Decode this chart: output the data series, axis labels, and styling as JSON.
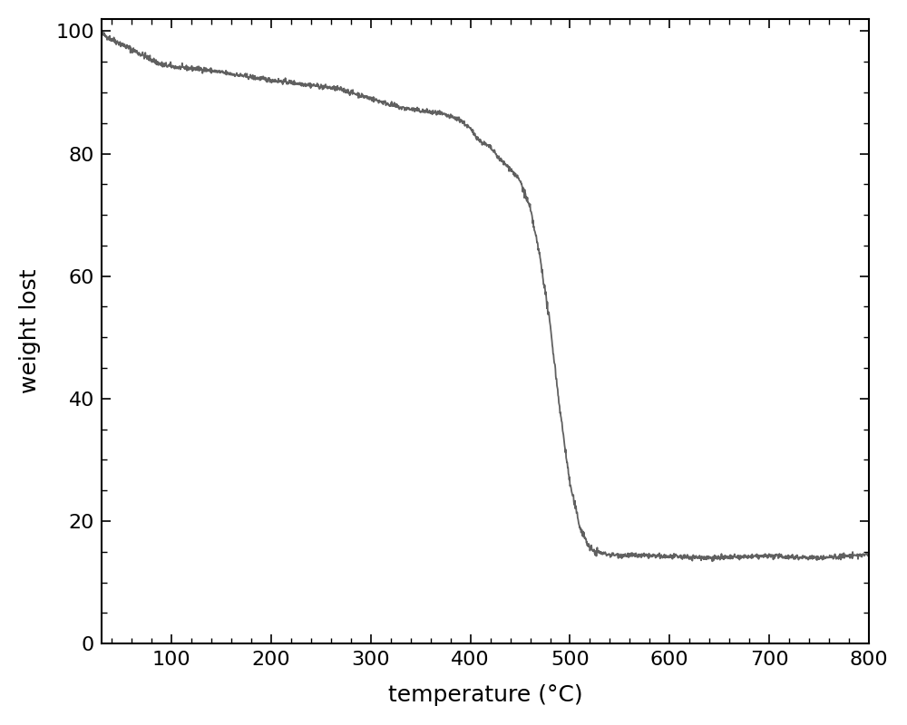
{
  "title": "",
  "xlabel": "temperature (°C)",
  "ylabel": "weight lost",
  "xlim": [
    30,
    800
  ],
  "ylim": [
    0,
    102
  ],
  "xticks": [
    100,
    200,
    300,
    400,
    500,
    600,
    700,
    800
  ],
  "yticks": [
    0,
    20,
    40,
    60,
    80,
    100
  ],
  "line_color": "#606060",
  "line_width": 1.3,
  "background_color": "#ffffff",
  "xlabel_fontsize": 18,
  "ylabel_fontsize": 18,
  "tick_fontsize": 16,
  "figsize": [
    10,
    8
  ],
  "dpi": 100,
  "key_points": [
    [
      30,
      99.5
    ],
    [
      60,
      97.0
    ],
    [
      90,
      94.5
    ],
    [
      110,
      94.0
    ],
    [
      130,
      93.8
    ],
    [
      160,
      93.0
    ],
    [
      200,
      92.0
    ],
    [
      240,
      91.2
    ],
    [
      270,
      90.5
    ],
    [
      290,
      89.5
    ],
    [
      310,
      88.5
    ],
    [
      330,
      87.5
    ],
    [
      350,
      87.0
    ],
    [
      370,
      86.5
    ],
    [
      390,
      85.5
    ],
    [
      400,
      84.0
    ],
    [
      410,
      82.0
    ],
    [
      420,
      81.0
    ],
    [
      430,
      79.0
    ],
    [
      440,
      77.5
    ],
    [
      450,
      75.5
    ],
    [
      460,
      71.0
    ],
    [
      470,
      63.0
    ],
    [
      480,
      52.0
    ],
    [
      490,
      38.0
    ],
    [
      500,
      26.0
    ],
    [
      510,
      19.0
    ],
    [
      520,
      15.5
    ],
    [
      525,
      15.0
    ],
    [
      540,
      14.5
    ],
    [
      600,
      14.2
    ],
    [
      650,
      14.0
    ],
    [
      700,
      14.3
    ],
    [
      750,
      14.0
    ],
    [
      800,
      14.5
    ]
  ]
}
